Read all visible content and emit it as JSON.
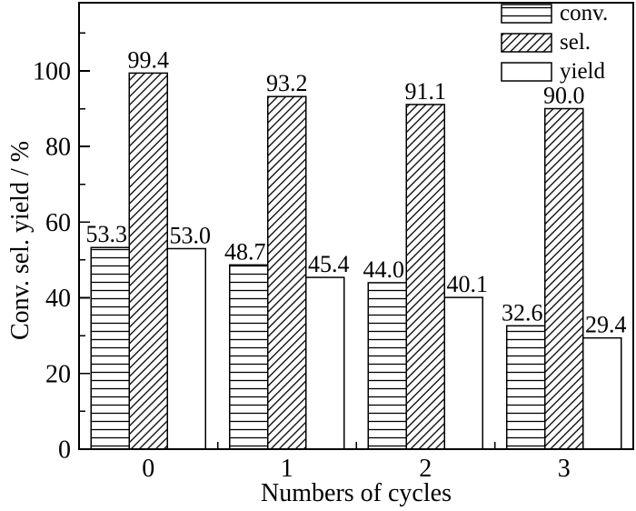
{
  "chart_data": {
    "type": "bar",
    "xlabel": "Numbers of cycles",
    "ylabel": "Conv. sel. yield / %",
    "categories": [
      "0",
      "1",
      "2",
      "3"
    ],
    "series": [
      {
        "name": "conv.",
        "hatch": "horizontal-lines",
        "values": [
          53.3,
          48.7,
          44.0,
          32.6
        ]
      },
      {
        "name": "sel.",
        "hatch": "diagonal-lines",
        "values": [
          99.4,
          93.2,
          91.1,
          90.0
        ]
      },
      {
        "name": "yield",
        "hatch": "none",
        "values": [
          53.0,
          45.4,
          40.1,
          29.4
        ]
      }
    ],
    "value_label_decimals": 1,
    "ylim": [
      0,
      118
    ],
    "yticks_major": [
      0,
      20,
      40,
      60,
      80,
      100
    ],
    "yticks_minor": [
      10,
      30,
      50,
      70,
      90,
      110
    ],
    "grid": false,
    "legend_position": "top-right",
    "colors": {
      "foreground": "#000000",
      "background": "#ffffff"
    }
  },
  "legend": {
    "items": [
      {
        "label": "conv.",
        "swatch": "horizontal-lines"
      },
      {
        "label": "sel.",
        "swatch": "diagonal-lines"
      },
      {
        "label": "yield",
        "swatch": "none"
      }
    ]
  }
}
